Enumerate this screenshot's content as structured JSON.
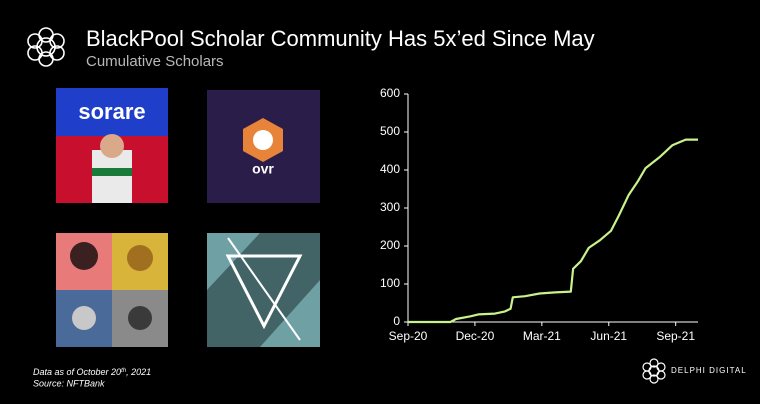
{
  "header": {
    "title": "BlackPool Scholar Community Has 5x’ed Since May",
    "subtitle": "Cumulative Scholars"
  },
  "images": {
    "sorare": "sorare",
    "ovr": "ovr"
  },
  "footer": {
    "note_start": "Data as of October 20",
    "note_sup": "th",
    "note_end": ", 2021",
    "source": "Source: NFTBank",
    "brand": "DELPHI DIGITAL"
  },
  "chart_data": {
    "type": "line",
    "color": "#c8f28c",
    "x": [
      0,
      1.9,
      2.15,
      2.8,
      3.15,
      3.9,
      4.35,
      4.6,
      4.7,
      5.25,
      5.9,
      6.6,
      7.3,
      7.4,
      7.75,
      8.1,
      8.6,
      9.1,
      9.45,
      9.9,
      10.3,
      10.65,
      11.3,
      11.85,
      12.45,
      13
    ],
    "values": [
      0,
      0,
      8,
      15,
      20,
      22,
      28,
      35,
      65,
      68,
      75,
      78,
      80,
      140,
      160,
      195,
      215,
      240,
      280,
      335,
      370,
      405,
      435,
      465,
      480,
      480
    ],
    "xlim": [
      0,
      13
    ],
    "ylim": [
      0,
      600
    ],
    "xticks": [
      {
        "value": 0,
        "label": "Sep-20"
      },
      {
        "value": 3,
        "label": "Dec-20"
      },
      {
        "value": 6,
        "label": "Mar-21"
      },
      {
        "value": 9,
        "label": "Jun-21"
      },
      {
        "value": 12,
        "label": "Sep-21"
      }
    ],
    "yticks": [
      0,
      100,
      200,
      300,
      400,
      500,
      600
    ]
  }
}
